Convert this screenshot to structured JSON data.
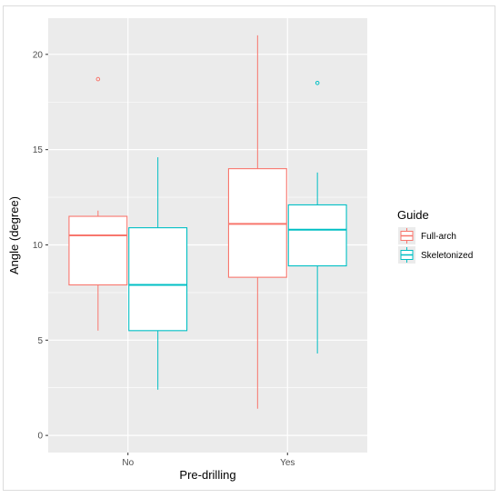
{
  "chart_data": {
    "type": "boxplot",
    "xlabel": "Pre-drilling",
    "ylabel": "Angle (degree)",
    "categories": [
      "No",
      "Yes"
    ],
    "ylim": [
      -0.9,
      21.9
    ],
    "yticks": [
      0,
      5,
      10,
      15,
      20
    ],
    "grid": true,
    "legend": {
      "title": "Guide",
      "placement": "right",
      "entries": [
        "Full-arch",
        "Skeletonized"
      ]
    },
    "series": [
      {
        "name": "Full-arch",
        "color": "#F8766D",
        "boxes": [
          {
            "category": "No",
            "min": 5.5,
            "q1": 7.9,
            "median": 10.5,
            "q3": 11.5,
            "max": 11.8,
            "outliers": [
              18.7
            ]
          },
          {
            "category": "Yes",
            "min": 1.4,
            "q1": 8.3,
            "median": 11.1,
            "q3": 14.0,
            "max": 21.0,
            "outliers": []
          }
        ]
      },
      {
        "name": "Skeletonized",
        "color": "#00BFC4",
        "boxes": [
          {
            "category": "No",
            "min": 2.4,
            "q1": 5.5,
            "median": 7.9,
            "q3": 10.9,
            "max": 14.6,
            "outliers": []
          },
          {
            "category": "Yes",
            "min": 4.3,
            "q1": 8.9,
            "median": 10.8,
            "q3": 12.1,
            "max": 13.8,
            "outliers": [
              18.5
            ]
          }
        ]
      }
    ]
  }
}
